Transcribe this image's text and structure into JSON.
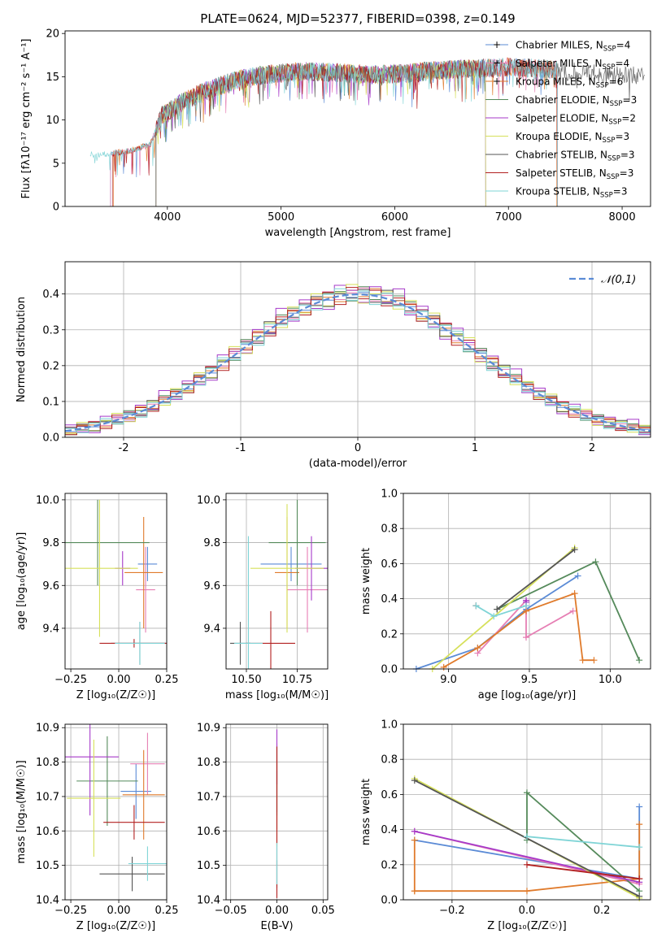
{
  "colors": {
    "Chabrier MILES": "#5b8bd6",
    "Salpeter MILES": "#e67fb4",
    "Kroupa MILES": "#e07b2c",
    "Chabrier ELODIE": "#558a5b",
    "Salpeter ELODIE": "#a63ac9",
    "Kroupa ELODIE": "#d6e05a",
    "Chabrier STELIB": "#555555",
    "Salpeter STELIB": "#b22020",
    "Kroupa STELIB": "#7fd4d6"
  },
  "chart_data": [
    {
      "id": "spectrum",
      "type": "line",
      "title": "PLATE=0624, MJD=52377, FIBERID=0398, z=0.149",
      "xlabel": "wavelength [Angstrom, rest frame]",
      "ylabel": "Flux [fλ10⁻¹⁷ erg cm⁻² s⁻¹ A⁻¹]",
      "xlim": [
        3100,
        8250
      ],
      "ylim": [
        0,
        20.3
      ],
      "xticks": [
        4000,
        5000,
        6000,
        7000,
        8000
      ],
      "yticks": [
        0,
        5,
        10,
        15,
        20
      ],
      "legend_position": "top-right",
      "legend": [
        {
          "series": "Chabrier MILES",
          "label": "Chabrier MILES, N",
          "sub": "SSP",
          "val": "=4"
        },
        {
          "series": "Salpeter MILES",
          "label": "Salpeter MILES, N",
          "sub": "SSP",
          "val": "=4"
        },
        {
          "series": "Kroupa MILES",
          "label": "Kroupa MILES, N",
          "sub": "SSP",
          "val": "=6"
        },
        {
          "series": "Chabrier ELODIE",
          "label": "Chabrier ELODIE, N",
          "sub": "SSP",
          "val": "=3"
        },
        {
          "series": "Salpeter ELODIE",
          "label": "Salpeter ELODIE, N",
          "sub": "SSP",
          "val": "=2"
        },
        {
          "series": "Kroupa ELODIE",
          "label": "Kroupa ELODIE, N",
          "sub": "SSP",
          "val": "=3"
        },
        {
          "series": "Chabrier STELIB",
          "label": "Chabrier STELIB, N",
          "sub": "SSP",
          "val": "=3"
        },
        {
          "series": "Salpeter STELIB",
          "label": "Salpeter STELIB, N",
          "sub": "SSP",
          "val": "=3"
        },
        {
          "series": "Kroupa STELIB",
          "label": "Kroupa STELIB, N",
          "sub": "SSP",
          "val": "=3"
        }
      ],
      "continuum": [
        [
          3350,
          6.0
        ],
        [
          3500,
          6.1
        ],
        [
          3700,
          6.5
        ],
        [
          3850,
          7.2
        ],
        [
          3950,
          10.5
        ],
        [
          4100,
          11.8
        ],
        [
          4300,
          13.2
        ],
        [
          4600,
          14.6
        ],
        [
          4900,
          15.3
        ],
        [
          5200,
          15.6
        ],
        [
          5500,
          15.5
        ],
        [
          5800,
          15.2
        ],
        [
          6100,
          15.4
        ],
        [
          6400,
          15.8
        ],
        [
          6700,
          15.9
        ],
        [
          7000,
          16.1
        ],
        [
          7200,
          16.0
        ],
        [
          7450,
          15.8
        ]
      ],
      "continuum_grey_extension": [
        [
          7450,
          15.6
        ],
        [
          7700,
          15.5
        ],
        [
          8000,
          15.2
        ],
        [
          8200,
          15.1
        ]
      ],
      "series_ranges": [
        {
          "series": "Chabrier MILES",
          "from": 3500,
          "to": 7430
        },
        {
          "series": "Salpeter MILES",
          "from": 3500,
          "to": 7430
        },
        {
          "series": "Kroupa MILES",
          "from": 3525,
          "to": 7425
        },
        {
          "series": "Chabrier ELODIE",
          "from": 3900,
          "to": 6800
        },
        {
          "series": "Salpeter ELODIE",
          "from": 3900,
          "to": 6800
        },
        {
          "series": "Kroupa ELODIE",
          "from": 3900,
          "to": 6800
        },
        {
          "series": "Chabrier STELIB",
          "from": 3900,
          "to": 8200
        },
        {
          "series": "Salpeter STELIB",
          "from": 3520,
          "to": 7430
        },
        {
          "series": "Kroupa STELIB",
          "from": 3320,
          "to": 7430
        }
      ]
    },
    {
      "id": "residual-hist",
      "type": "histogram",
      "xlabel": "(data-model)/error",
      "ylabel": "Normed distribution",
      "xlim": [
        -2.5,
        2.5
      ],
      "ylim": [
        0,
        0.49
      ],
      "xticks": [
        -2,
        -1,
        0,
        1,
        2
      ],
      "yticks": [
        0.0,
        0.1,
        0.2,
        0.3,
        0.4
      ],
      "grid": true,
      "bin_width": 0.1,
      "reference_curve": {
        "label": "𝒩(0,1)",
        "mean": 0,
        "sigma": 1,
        "style": "dashed",
        "color": "#5b8bd6"
      },
      "legend_position": "top-right",
      "bin_offsets": {
        "Chabrier MILES": [
          0.004,
          -0.006,
          0.008,
          -0.004,
          0.01,
          -0.008,
          0.006,
          0.003,
          -0.01,
          0.007
        ],
        "Salpeter MILES": [
          -0.012,
          0.015,
          -0.006,
          0.02,
          -0.01,
          0.005,
          0.018,
          -0.014,
          0.009,
          -0.004
        ],
        "Kroupa MILES": [
          0.01,
          -0.012,
          0.014,
          0.004,
          -0.016,
          0.012,
          -0.006,
          0.02,
          -0.008,
          0.006
        ],
        "Chabrier ELODIE": [
          0.018,
          -0.02,
          -0.008,
          0.016,
          0.012,
          -0.018,
          0.022,
          -0.01,
          -0.014,
          0.02
        ],
        "Salpeter ELODIE": [
          -0.02,
          0.024,
          -0.016,
          -0.03,
          0.03,
          0.012,
          -0.022,
          0.026,
          -0.012,
          0.04
        ],
        "Kroupa ELODIE": [
          0.022,
          -0.014,
          0.026,
          -0.02,
          0.01,
          0.028,
          -0.024,
          0.006,
          0.02,
          -0.018
        ],
        "Chabrier STELIB": [
          -0.008,
          0.012,
          0.018,
          -0.022,
          0.006,
          -0.01,
          0.014,
          -0.018,
          0.024,
          -0.006
        ],
        "Salpeter STELIB": [
          0.012,
          -0.02,
          0.01,
          0.018,
          -0.024,
          0.02,
          -0.012,
          0.016,
          -0.02,
          0.014
        ],
        "Kroupa STELIB": [
          -0.016,
          0.008,
          -0.02,
          0.012,
          0.02,
          -0.016,
          0.01,
          -0.024,
          0.016,
          -0.01
        ]
      }
    },
    {
      "id": "age-vs-Z",
      "type": "errorbar",
      "xlabel": "Z [log₁₀(Z/Z☉)]",
      "ylabel": "age  [log₁₀(age/yr)]",
      "xlim": [
        -0.28,
        0.25
      ],
      "ylim": [
        9.21,
        10.03
      ],
      "xticks": [
        "-0.25",
        "0.00",
        "0.25"
      ],
      "yticks": [
        "9.4",
        "9.6",
        "9.8",
        "10.0"
      ],
      "grid": true,
      "points": [
        {
          "series": "Chabrier MILES",
          "x": 0.15,
          "xerr": 0.05,
          "y": 9.7,
          "yerr": 0.08
        },
        {
          "series": "Salpeter MILES",
          "x": 0.14,
          "xerr": 0.05,
          "y": 9.58,
          "yerr": 0.2
        },
        {
          "series": "Kroupa MILES",
          "x": 0.13,
          "xerr": 0.1,
          "y": 9.66,
          "yerr": 0.26
        },
        {
          "series": "Chabrier ELODIE",
          "x": -0.11,
          "xerr": 0.27,
          "y": 9.8,
          "yerr": 0.2
        },
        {
          "series": "Salpeter ELODIE",
          "x": 0.02,
          "xerr": 0.04,
          "y": 9.68,
          "yerr": 0.08
        },
        {
          "series": "Kroupa ELODIE",
          "x": -0.1,
          "xerr": 0.2,
          "y": 9.68,
          "yerr": 0.32
        },
        {
          "series": "Chabrier STELIB",
          "x": 0.11,
          "xerr": 0.15,
          "y": 9.33,
          "yerr": 0.1
        },
        {
          "series": "Salpeter STELIB",
          "x": 0.08,
          "xerr": 0.18,
          "y": 9.33,
          "yerr": 0.02
        },
        {
          "series": "Kroupa STELIB",
          "x": 0.11,
          "xerr": 0.13,
          "y": 9.33,
          "yerr": 0.1
        }
      ]
    },
    {
      "id": "age-vs-mass",
      "type": "errorbar",
      "xlabel": "mass [log₁₀(M/M☉)]",
      "ylabel": "",
      "xlim": [
        10.4,
        10.9
      ],
      "ylim": [
        9.21,
        10.03
      ],
      "xticks": [
        "10.50",
        "10.75"
      ],
      "yticks": [
        "9.4",
        "9.6",
        "9.8",
        "10.0"
      ],
      "grid": true,
      "points": [
        {
          "series": "Chabrier MILES",
          "x": 10.72,
          "xerr": 0.15,
          "y": 9.7,
          "yerr": 0.08
        },
        {
          "series": "Salpeter MILES",
          "x": 10.8,
          "xerr": 0.1,
          "y": 9.58,
          "yerr": 0.2
        },
        {
          "series": "Kroupa MILES",
          "x": 10.7,
          "xerr": 0.06,
          "y": 9.66,
          "yerr": 0.26
        },
        {
          "series": "Chabrier ELODIE",
          "x": 10.75,
          "xerr": 0.14,
          "y": 9.8,
          "yerr": 0.2
        },
        {
          "series": "Salpeter ELODIE",
          "x": 10.82,
          "xerr": 0.08,
          "y": 9.68,
          "yerr": 0.15
        },
        {
          "series": "Kroupa ELODIE",
          "x": 10.7,
          "xerr": 0.18,
          "y": 9.68,
          "yerr": 0.3
        },
        {
          "series": "Chabrier STELIB",
          "x": 10.47,
          "xerr": 0.05,
          "y": 9.33,
          "yerr": 0.1
        },
        {
          "series": "Salpeter STELIB",
          "x": 10.62,
          "xerr": 0.12,
          "y": 9.33,
          "yerr": 0.15
        },
        {
          "series": "Kroupa STELIB",
          "x": 10.51,
          "xerr": 0.07,
          "y": 9.33,
          "yerr": 0.5
        }
      ]
    },
    {
      "id": "weight-vs-age",
      "type": "line",
      "xlabel": "age  [log₁₀(age/yr)]",
      "ylabel": "mass weight",
      "xlim": [
        8.72,
        10.25
      ],
      "ylim": [
        0,
        1.0
      ],
      "xticks": [
        "9.0",
        "9.5",
        "10.0"
      ],
      "yticks": [
        "0.0",
        "0.2",
        "0.4",
        "0.6",
        "0.8",
        "1.0"
      ],
      "grid": true,
      "series": [
        {
          "name": "Chabrier MILES",
          "x": [
            8.8,
            9.18,
            9.48,
            9.8
          ],
          "y": [
            0.0,
            0.12,
            0.34,
            0.53
          ]
        },
        {
          "name": "Salpeter MILES",
          "x": [
            9.18,
            9.48,
            9.48,
            9.77
          ],
          "y": [
            0.09,
            0.39,
            0.18,
            0.33
          ]
        },
        {
          "name": "Kroupa MILES",
          "x": [
            8.97,
            9.18,
            9.48,
            9.78,
            9.83,
            9.9
          ],
          "y": [
            0.01,
            0.12,
            0.33,
            0.43,
            0.05,
            0.05
          ]
        },
        {
          "name": "Chabrier ELODIE",
          "x": [
            9.3,
            9.91,
            10.18
          ],
          "y": [
            0.34,
            0.61,
            0.05
          ]
        },
        {
          "name": "Salpeter ELODIE",
          "x": [
            9.48,
            9.48
          ],
          "y": [
            0.39,
            0.38
          ]
        },
        {
          "name": "Kroupa ELODIE",
          "x": [
            8.9,
            9.78
          ],
          "y": [
            0.0,
            0.69
          ]
        },
        {
          "name": "Chabrier STELIB",
          "x": [
            9.3,
            9.78
          ],
          "y": [
            0.34,
            0.68
          ]
        },
        {
          "name": "Salpeter STELIB",
          "x": [
            9.17
          ],
          "y": [
            0.36
          ]
        },
        {
          "name": "Kroupa STELIB",
          "x": [
            9.17,
            9.28,
            9.48
          ],
          "y": [
            0.36,
            0.3,
            0.36
          ]
        }
      ]
    },
    {
      "id": "mass-vs-Z",
      "type": "errorbar",
      "xlabel": "Z [log₁₀(Z/Z☉)]",
      "ylabel": "mass [log₁₀(M/M☉)]",
      "xlim": [
        -0.28,
        0.25
      ],
      "ylim": [
        10.4,
        10.91
      ],
      "xticks": [
        "-0.25",
        "0.00",
        "0.25"
      ],
      "yticks": [
        "10.4",
        "10.5",
        "10.6",
        "10.7",
        "10.8",
        "10.9"
      ],
      "grid": true,
      "points": [
        {
          "series": "Chabrier MILES",
          "x": 0.09,
          "xerr": 0.08,
          "y": 10.715,
          "yerr": 0.08
        },
        {
          "series": "Salpeter MILES",
          "x": 0.15,
          "xerr": 0.09,
          "y": 10.795,
          "yerr": 0.09
        },
        {
          "series": "Kroupa MILES",
          "x": 0.13,
          "xerr": 0.11,
          "y": 10.705,
          "yerr": 0.13
        },
        {
          "series": "Chabrier ELODIE",
          "x": -0.06,
          "xerr": 0.16,
          "y": 10.745,
          "yerr": 0.13
        },
        {
          "series": "Salpeter ELODIE",
          "x": -0.15,
          "xerr": 0.15,
          "y": 10.815,
          "yerr": 0.17
        },
        {
          "series": "Kroupa ELODIE",
          "x": -0.13,
          "xerr": 0.14,
          "y": 10.695,
          "yerr": 0.17
        },
        {
          "series": "Chabrier STELIB",
          "x": 0.07,
          "xerr": 0.17,
          "y": 10.475,
          "yerr": 0.05
        },
        {
          "series": "Salpeter STELIB",
          "x": 0.08,
          "xerr": 0.16,
          "y": 10.625,
          "yerr": 0.05
        },
        {
          "series": "Kroupa STELIB",
          "x": 0.15,
          "xerr": 0.1,
          "y": 10.505,
          "yerr": 0.05
        }
      ]
    },
    {
      "id": "mass-vs-EBV",
      "type": "errorbar",
      "xlabel": "E(B-V)",
      "ylabel": "",
      "xlim": [
        -0.055,
        0.055
      ],
      "ylim": [
        10.4,
        10.91
      ],
      "xticks": [
        "-0.05",
        "0.00",
        "0.05"
      ],
      "yticks": [
        "10.4",
        "10.5",
        "10.6",
        "10.7",
        "10.8",
        "10.9"
      ],
      "grid": true,
      "points": [
        {
          "series": "Chabrier MILES",
          "x": 0.0,
          "xerr": 0.0,
          "y": 10.715,
          "yerr": 0.06
        },
        {
          "series": "Salpeter MILES",
          "x": 0.0,
          "xerr": 0.0,
          "y": 10.795,
          "yerr": 0.06
        },
        {
          "series": "Kroupa MILES",
          "x": 0.0,
          "xerr": 0.0,
          "y": 10.705,
          "yerr": 0.1
        },
        {
          "series": "Chabrier ELODIE",
          "x": 0.0,
          "xerr": 0.0,
          "y": 10.745,
          "yerr": 0.1
        },
        {
          "series": "Salpeter ELODIE",
          "x": 0.0,
          "xerr": 0.0,
          "y": 10.815,
          "yerr": 0.08
        },
        {
          "series": "Kroupa ELODIE",
          "x": 0.0,
          "xerr": 0.0,
          "y": 10.695,
          "yerr": 0.14
        },
        {
          "series": "Chabrier STELIB",
          "x": 0.0,
          "xerr": 0.0,
          "y": 10.475,
          "yerr": 0.04
        },
        {
          "series": "Salpeter STELIB",
          "x": 0.0,
          "xerr": 0.0,
          "y": 10.625,
          "yerr": 0.22
        },
        {
          "series": "Kroupa STELIB",
          "x": 0.0,
          "xerr": 0.0,
          "y": 10.505,
          "yerr": 0.06
        }
      ]
    },
    {
      "id": "weight-vs-Z",
      "type": "line",
      "xlabel": "Z [log₁₀(Z/Z☉)]",
      "ylabel": "mass weight",
      "xlim": [
        -0.33,
        0.33
      ],
      "ylim": [
        0,
        1.0
      ],
      "xticks": [
        "-0.2",
        "0.0",
        "0.2"
      ],
      "yticks": [
        "0.0",
        "0.2",
        "0.4",
        "0.6",
        "0.8",
        "1.0"
      ],
      "grid": true,
      "series": [
        {
          "name": "Chabrier MILES",
          "x": [
            -0.3,
            0.3,
            0.3
          ],
          "y": [
            0.34,
            0.12,
            0.53
          ]
        },
        {
          "name": "Salpeter MILES",
          "x": [
            -0.3,
            0.3
          ],
          "y": [
            0.39,
            0.09
          ]
        },
        {
          "name": "Kroupa MILES",
          "x": [
            -0.3,
            -0.3,
            -0.3,
            0.0,
            0.3,
            0.3
          ],
          "y": [
            0.34,
            0.05,
            0.05,
            0.05,
            0.12,
            0.43
          ]
        },
        {
          "name": "Chabrier ELODIE",
          "x": [
            0.0,
            0.0,
            0.3
          ],
          "y": [
            0.34,
            0.61,
            0.05
          ]
        },
        {
          "name": "Salpeter ELODIE",
          "x": [
            -0.3,
            0.3
          ],
          "y": [
            0.39,
            0.1
          ]
        },
        {
          "name": "Kroupa ELODIE",
          "x": [
            -0.3,
            0.3
          ],
          "y": [
            0.69,
            0.01
          ]
        },
        {
          "name": "Chabrier STELIB",
          "x": [
            -0.3,
            0.3
          ],
          "y": [
            0.68,
            0.02
          ]
        },
        {
          "name": "Salpeter STELIB",
          "x": [
            0.0,
            0.3
          ],
          "y": [
            0.2,
            0.12
          ]
        },
        {
          "name": "Kroupa STELIB",
          "x": [
            0.0,
            0.3
          ],
          "y": [
            0.36,
            0.3
          ]
        }
      ]
    }
  ]
}
